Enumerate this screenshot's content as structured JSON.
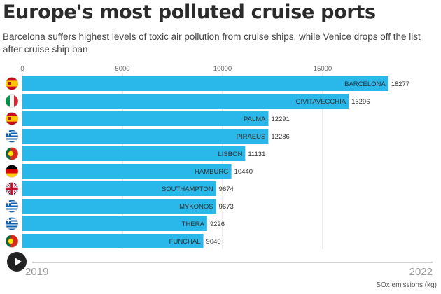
{
  "title": "Europe's most polluted cruise ports",
  "subtitle": "Barcelona suffers highest levels of toxic air pollution from cruise ships, while Venice drops off the list after cruise ship ban",
  "colors": {
    "bar": "#2ab7ea",
    "grid": "#d8d8d8"
  },
  "timeline": {
    "start_label": "2019",
    "end_label": "2022",
    "play_icon": "play-icon"
  },
  "units_note": "SOx emissions (kg)",
  "chart_data": {
    "type": "bar",
    "orientation": "horizontal",
    "xlim": [
      0,
      19000
    ],
    "x_ticks": [
      0,
      5000,
      10000,
      15000
    ],
    "grid": true,
    "categories": [
      "BARCELONA",
      "CIVITAVECCHIA",
      "PALMA",
      "PIRAEUS",
      "LISBON",
      "HAMBURG",
      "SOUTHAMPTON",
      "MYKONOS",
      "THERA",
      "FUNCHAL"
    ],
    "values": [
      18277,
      16296,
      12291,
      12286,
      11131,
      10440,
      9674,
      9673,
      9226,
      9040
    ],
    "flags": [
      "spain-flag-icon",
      "italy-flag-icon",
      "spain-flag-icon",
      "greece-flag-icon",
      "portugal-flag-icon",
      "germany-flag-icon",
      "uk-flag-icon",
      "greece-flag-icon",
      "greece-flag-icon",
      "portugal-flag-icon"
    ]
  }
}
